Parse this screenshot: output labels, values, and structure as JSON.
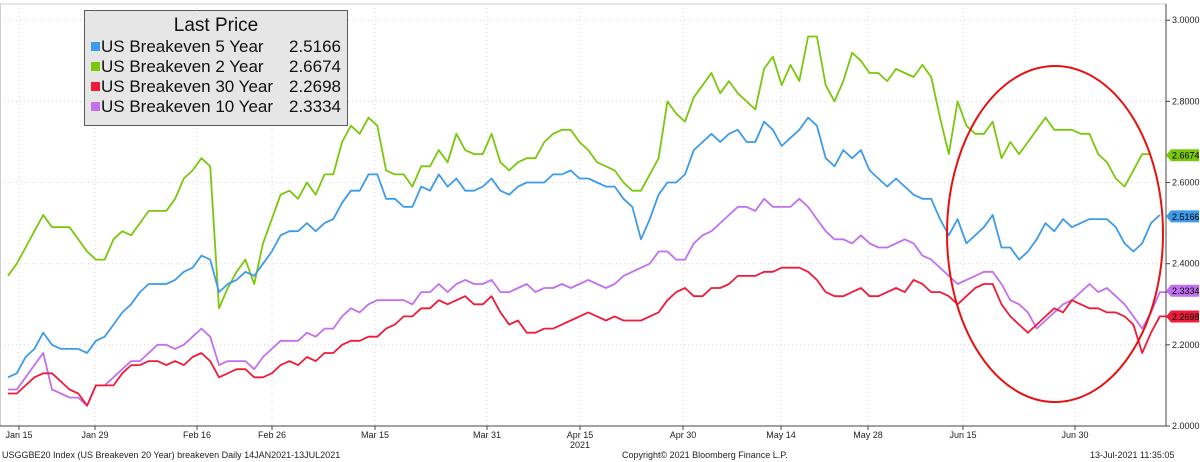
{
  "legend": {
    "title": "Last Price",
    "items": [
      {
        "label": "US Breakeven 5 Year",
        "value": "2.5166",
        "color": "#3d9be9"
      },
      {
        "label": "US Breakeven 2 Year",
        "value": "2.6674",
        "color": "#7ac70c"
      },
      {
        "label": "US Breakeven 30 Year",
        "value": "2.2698",
        "color": "#ee1b3a"
      },
      {
        "label": "US Breakeven 10 Year",
        "value": "2.3334",
        "color": "#c070f0"
      }
    ]
  },
  "footer": {
    "left": "USGGBE20 Index (US Breakeven 20 Year) breakeven  Daily 14JAN2021-13JUL2021",
    "center": "Copyright© 2021 Bloomberg Finance L.P.",
    "right": "13-Jul-2021 11:35:05"
  },
  "chart_data": {
    "type": "line",
    "year_label": "2021",
    "x_ticks": [
      "Jan 15",
      "Jan 29",
      "Feb 16",
      "Feb 26",
      "Mar 15",
      "Mar 31",
      "Apr 15",
      "Apr 30",
      "May 14",
      "May 28",
      "Jun 15",
      "Jun 30"
    ],
    "y_ticks": [
      "2.0000",
      "2.2000",
      "2.4000",
      "2.6000",
      "2.8000",
      "3.0000"
    ],
    "ylim": [
      2.0,
      3.04
    ],
    "grid": true,
    "legend_position": "top-left",
    "annotation": {
      "shape": "ellipse",
      "color": "#e81010"
    },
    "series": [
      {
        "name": "US Breakeven 2 Year",
        "color": "#7ac70c",
        "last": "2.6674",
        "values": [
          2.37,
          2.4,
          2.44,
          2.48,
          2.52,
          2.49,
          2.49,
          2.49,
          2.46,
          2.43,
          2.41,
          2.41,
          2.46,
          2.48,
          2.47,
          2.5,
          2.53,
          2.53,
          2.53,
          2.56,
          2.61,
          2.63,
          2.66,
          2.64,
          2.29,
          2.34,
          2.38,
          2.41,
          2.35,
          2.45,
          2.51,
          2.57,
          2.58,
          2.56,
          2.6,
          2.57,
          2.62,
          2.62,
          2.7,
          2.74,
          2.72,
          2.76,
          2.74,
          2.63,
          2.62,
          2.62,
          2.59,
          2.64,
          2.64,
          2.68,
          2.65,
          2.72,
          2.68,
          2.67,
          2.67,
          2.72,
          2.65,
          2.63,
          2.65,
          2.66,
          2.66,
          2.7,
          2.72,
          2.73,
          2.73,
          2.7,
          2.68,
          2.65,
          2.64,
          2.63,
          2.6,
          2.58,
          2.58,
          2.62,
          2.66,
          2.8,
          2.77,
          2.75,
          2.81,
          2.84,
          2.87,
          2.82,
          2.85,
          2.82,
          2.8,
          2.78,
          2.88,
          2.91,
          2.84,
          2.89,
          2.85,
          2.96,
          2.96,
          2.84,
          2.8,
          2.85,
          2.92,
          2.9,
          2.87,
          2.87,
          2.85,
          2.88,
          2.87,
          2.86,
          2.89,
          2.86,
          2.76,
          2.67,
          2.8,
          2.74,
          2.72,
          2.72,
          2.75,
          2.66,
          2.7,
          2.67,
          2.7,
          2.73,
          2.76,
          2.73,
          2.73,
          2.73,
          2.72,
          2.72,
          2.67,
          2.65,
          2.61,
          2.59,
          2.63,
          2.67,
          2.67
        ]
      },
      {
        "name": "US Breakeven 5 Year",
        "color": "#3d9be9",
        "last": "2.5166",
        "values": [
          2.12,
          2.13,
          2.17,
          2.19,
          2.23,
          2.2,
          2.19,
          2.19,
          2.19,
          2.18,
          2.21,
          2.22,
          2.25,
          2.28,
          2.3,
          2.33,
          2.35,
          2.35,
          2.35,
          2.36,
          2.38,
          2.39,
          2.42,
          2.41,
          2.33,
          2.35,
          2.36,
          2.38,
          2.37,
          2.4,
          2.43,
          2.47,
          2.48,
          2.48,
          2.5,
          2.48,
          2.5,
          2.51,
          2.55,
          2.58,
          2.58,
          2.62,
          2.62,
          2.56,
          2.56,
          2.54,
          2.54,
          2.59,
          2.58,
          2.62,
          2.59,
          2.61,
          2.58,
          2.58,
          2.59,
          2.61,
          2.58,
          2.57,
          2.59,
          2.6,
          2.6,
          2.6,
          2.62,
          2.62,
          2.63,
          2.61,
          2.61,
          2.6,
          2.59,
          2.59,
          2.56,
          2.54,
          2.46,
          2.51,
          2.57,
          2.6,
          2.6,
          2.62,
          2.68,
          2.7,
          2.72,
          2.7,
          2.72,
          2.73,
          2.7,
          2.7,
          2.75,
          2.73,
          2.69,
          2.71,
          2.73,
          2.76,
          2.74,
          2.66,
          2.64,
          2.68,
          2.66,
          2.68,
          2.63,
          2.61,
          2.59,
          2.61,
          2.59,
          2.57,
          2.56,
          2.56,
          2.51,
          2.47,
          2.51,
          2.45,
          2.47,
          2.49,
          2.52,
          2.44,
          2.44,
          2.41,
          2.43,
          2.46,
          2.5,
          2.48,
          2.51,
          2.49,
          2.5,
          2.51,
          2.51,
          2.51,
          2.49,
          2.45,
          2.43,
          2.45,
          2.5,
          2.52
        ]
      },
      {
        "name": "US Breakeven 10 Year",
        "color": "#c070f0",
        "last": "2.3334",
        "values": [
          2.09,
          2.09,
          2.12,
          2.15,
          2.18,
          2.09,
          2.08,
          2.07,
          2.07,
          2.05,
          2.1,
          2.1,
          2.12,
          2.14,
          2.16,
          2.16,
          2.18,
          2.2,
          2.2,
          2.19,
          2.2,
          2.22,
          2.24,
          2.22,
          2.15,
          2.16,
          2.16,
          2.16,
          2.14,
          2.17,
          2.19,
          2.21,
          2.21,
          2.21,
          2.23,
          2.22,
          2.24,
          2.24,
          2.27,
          2.29,
          2.28,
          2.3,
          2.31,
          2.31,
          2.31,
          2.31,
          2.3,
          2.33,
          2.33,
          2.35,
          2.33,
          2.35,
          2.36,
          2.35,
          2.35,
          2.36,
          2.33,
          2.33,
          2.34,
          2.35,
          2.33,
          2.34,
          2.34,
          2.35,
          2.34,
          2.35,
          2.36,
          2.35,
          2.34,
          2.35,
          2.37,
          2.38,
          2.39,
          2.4,
          2.43,
          2.43,
          2.41,
          2.41,
          2.45,
          2.47,
          2.48,
          2.5,
          2.52,
          2.54,
          2.54,
          2.53,
          2.56,
          2.54,
          2.54,
          2.54,
          2.56,
          2.54,
          2.51,
          2.48,
          2.46,
          2.46,
          2.45,
          2.47,
          2.45,
          2.44,
          2.44,
          2.45,
          2.46,
          2.45,
          2.42,
          2.41,
          2.39,
          2.37,
          2.35,
          2.36,
          2.37,
          2.38,
          2.38,
          2.35,
          2.31,
          2.3,
          2.28,
          2.24,
          2.26,
          2.28,
          2.3,
          2.31,
          2.33,
          2.35,
          2.33,
          2.34,
          2.32,
          2.3,
          2.27,
          2.24,
          2.28,
          2.33,
          2.33
        ]
      },
      {
        "name": "US Breakeven 30 Year",
        "color": "#ee1b3a",
        "last": "2.2698",
        "values": [
          2.08,
          2.08,
          2.1,
          2.12,
          2.13,
          2.13,
          2.11,
          2.09,
          2.08,
          2.05,
          2.1,
          2.1,
          2.1,
          2.13,
          2.15,
          2.15,
          2.16,
          2.16,
          2.15,
          2.16,
          2.15,
          2.17,
          2.18,
          2.16,
          2.12,
          2.13,
          2.14,
          2.14,
          2.12,
          2.12,
          2.13,
          2.15,
          2.16,
          2.15,
          2.17,
          2.16,
          2.18,
          2.18,
          2.2,
          2.21,
          2.21,
          2.22,
          2.22,
          2.24,
          2.25,
          2.27,
          2.27,
          2.29,
          2.29,
          2.31,
          2.3,
          2.31,
          2.32,
          2.3,
          2.3,
          2.32,
          2.28,
          2.25,
          2.26,
          2.23,
          2.23,
          2.24,
          2.24,
          2.25,
          2.26,
          2.27,
          2.28,
          2.27,
          2.26,
          2.27,
          2.26,
          2.26,
          2.26,
          2.27,
          2.28,
          2.31,
          2.33,
          2.34,
          2.32,
          2.32,
          2.34,
          2.34,
          2.35,
          2.37,
          2.37,
          2.37,
          2.38,
          2.38,
          2.39,
          2.39,
          2.39,
          2.38,
          2.36,
          2.33,
          2.32,
          2.32,
          2.33,
          2.34,
          2.32,
          2.32,
          2.33,
          2.34,
          2.33,
          2.36,
          2.35,
          2.33,
          2.33,
          2.32,
          2.3,
          2.32,
          2.34,
          2.35,
          2.35,
          2.3,
          2.27,
          2.25,
          2.23,
          2.25,
          2.27,
          2.29,
          2.28,
          2.31,
          2.3,
          2.29,
          2.29,
          2.28,
          2.28,
          2.27,
          2.25,
          2.18,
          2.23,
          2.27,
          2.27
        ]
      }
    ]
  }
}
